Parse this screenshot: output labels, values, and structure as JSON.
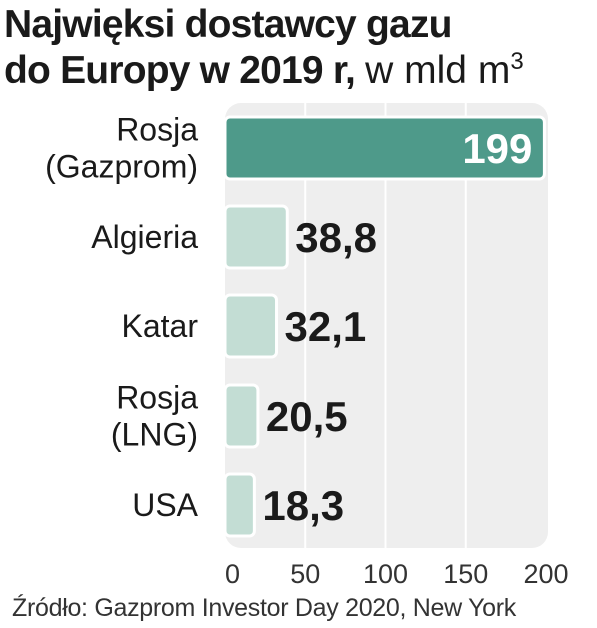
{
  "title": {
    "line1": "Najwięksi dostawcy gazu",
    "line2_bold": "do Europy w 2019 r,",
    "line2_unit": "w mld m",
    "unit_sup": "3"
  },
  "source": "Źródło: Gazprom Investor Day 2020, New York",
  "chart_data": {
    "type": "bar",
    "orientation": "horizontal",
    "title": "Najwięksi dostawcy gazu do Europy w 2019 r, w mld m3",
    "categories": [
      [
        "Rosja",
        "(Gazprom)"
      ],
      [
        "Algieria"
      ],
      [
        "Katar"
      ],
      [
        "Rosja",
        "(LNG)"
      ],
      [
        "USA"
      ]
    ],
    "values": [
      199,
      38.8,
      32.1,
      20.5,
      18.3
    ],
    "value_labels": [
      "199",
      "38,8",
      "32,1",
      "20,5",
      "18,3"
    ],
    "xlim": [
      0,
      200
    ],
    "xticks": [
      0,
      50,
      100,
      150,
      200
    ],
    "grid": "vertical",
    "colors": {
      "highlight": "#4e9a8a",
      "bar": "#c3ddd4",
      "panel": "#eeeeee",
      "grid": "#ffffff",
      "text": "#1a1a1a"
    }
  }
}
